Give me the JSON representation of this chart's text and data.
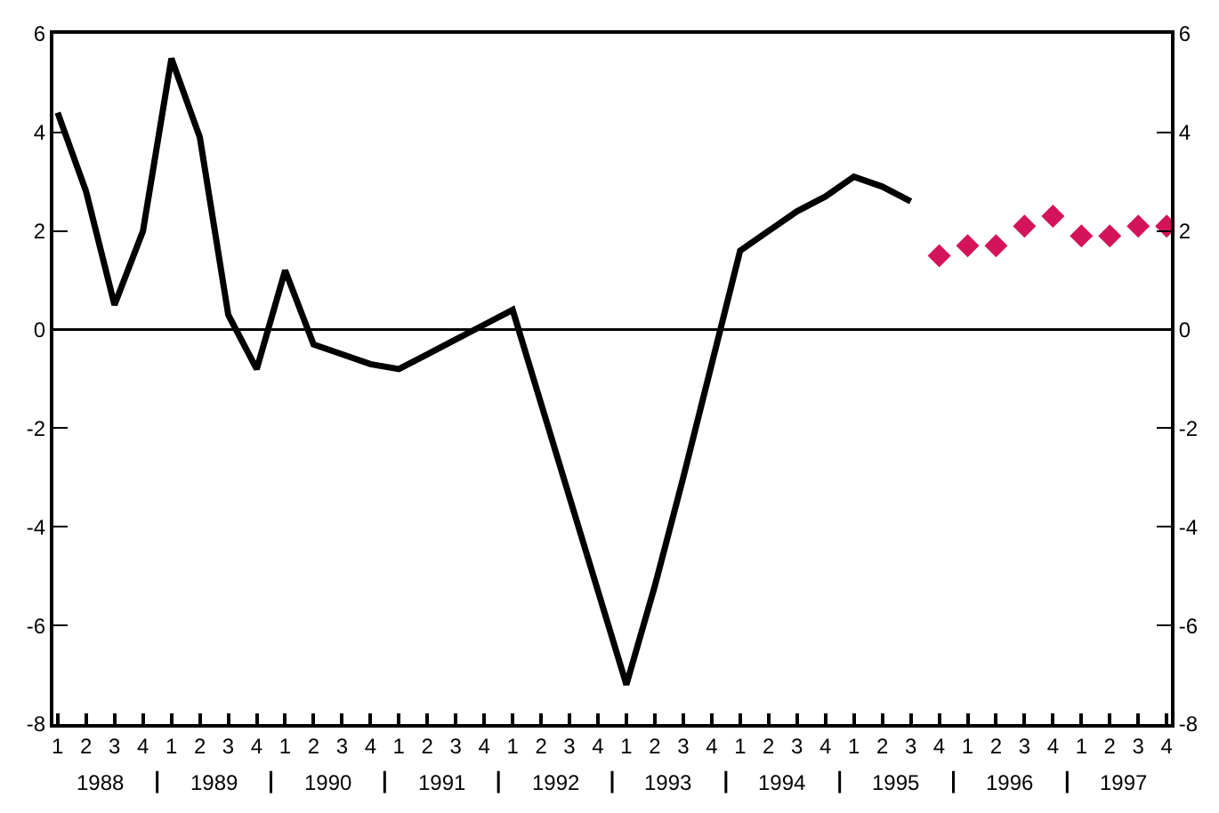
{
  "chart_data": {
    "type": "line",
    "categories": [
      "1",
      "2",
      "3",
      "4",
      "1",
      "2",
      "3",
      "4",
      "1",
      "2",
      "3",
      "4",
      "1",
      "2",
      "3",
      "4",
      "1",
      "2",
      "3",
      "4",
      "1",
      "2",
      "3",
      "4",
      "1",
      "2",
      "3",
      "4",
      "1",
      "2",
      "3",
      "4",
      "1",
      "2",
      "3",
      "4",
      "1",
      "2",
      "3",
      "4"
    ],
    "series": [
      {
        "color": "#000000",
        "values": [
          4.4,
          2.8,
          0.5,
          2.0,
          5.5,
          3.9,
          0.3,
          -0.8,
          1.2,
          -0.3,
          -0.5,
          -0.7,
          -0.8,
          -0.5,
          -0.2,
          0.1,
          0.4,
          -1.5,
          -3.4,
          -5.3,
          -7.2,
          -5.2,
          -3.0,
          -0.7,
          1.6,
          2.0,
          2.4,
          2.7,
          3.1,
          2.9,
          2.6,
          null,
          null,
          null,
          null,
          null,
          null,
          null,
          null,
          null
        ]
      },
      {
        "type": "scatter",
        "color": "#d4145a",
        "marker": "diamond",
        "values": [
          null,
          null,
          null,
          null,
          null,
          null,
          null,
          null,
          null,
          null,
          null,
          null,
          null,
          null,
          null,
          null,
          null,
          null,
          null,
          null,
          null,
          null,
          null,
          null,
          null,
          null,
          null,
          null,
          null,
          null,
          null,
          1.5,
          1.7,
          1.7,
          2.1,
          2.3,
          1.9,
          1.9,
          2.1,
          2.1
        ]
      }
    ],
    "ylim": [
      -8,
      6
    ],
    "yticks": [
      -8,
      -6,
      -4,
      -2,
      0,
      2,
      4,
      6
    ],
    "y2lim": [
      -8,
      6
    ],
    "y2ticks": [
      -8,
      -6,
      -4,
      -2,
      0,
      2,
      4,
      6
    ],
    "ref_lines": [
      {
        "axis": "y",
        "value": 0,
        "color": "#000000"
      }
    ],
    "annotations": [
      "1988",
      "1989",
      "1990",
      "1991",
      "1992",
      "1993",
      "1994",
      "1995",
      "1996",
      "1997"
    ]
  }
}
